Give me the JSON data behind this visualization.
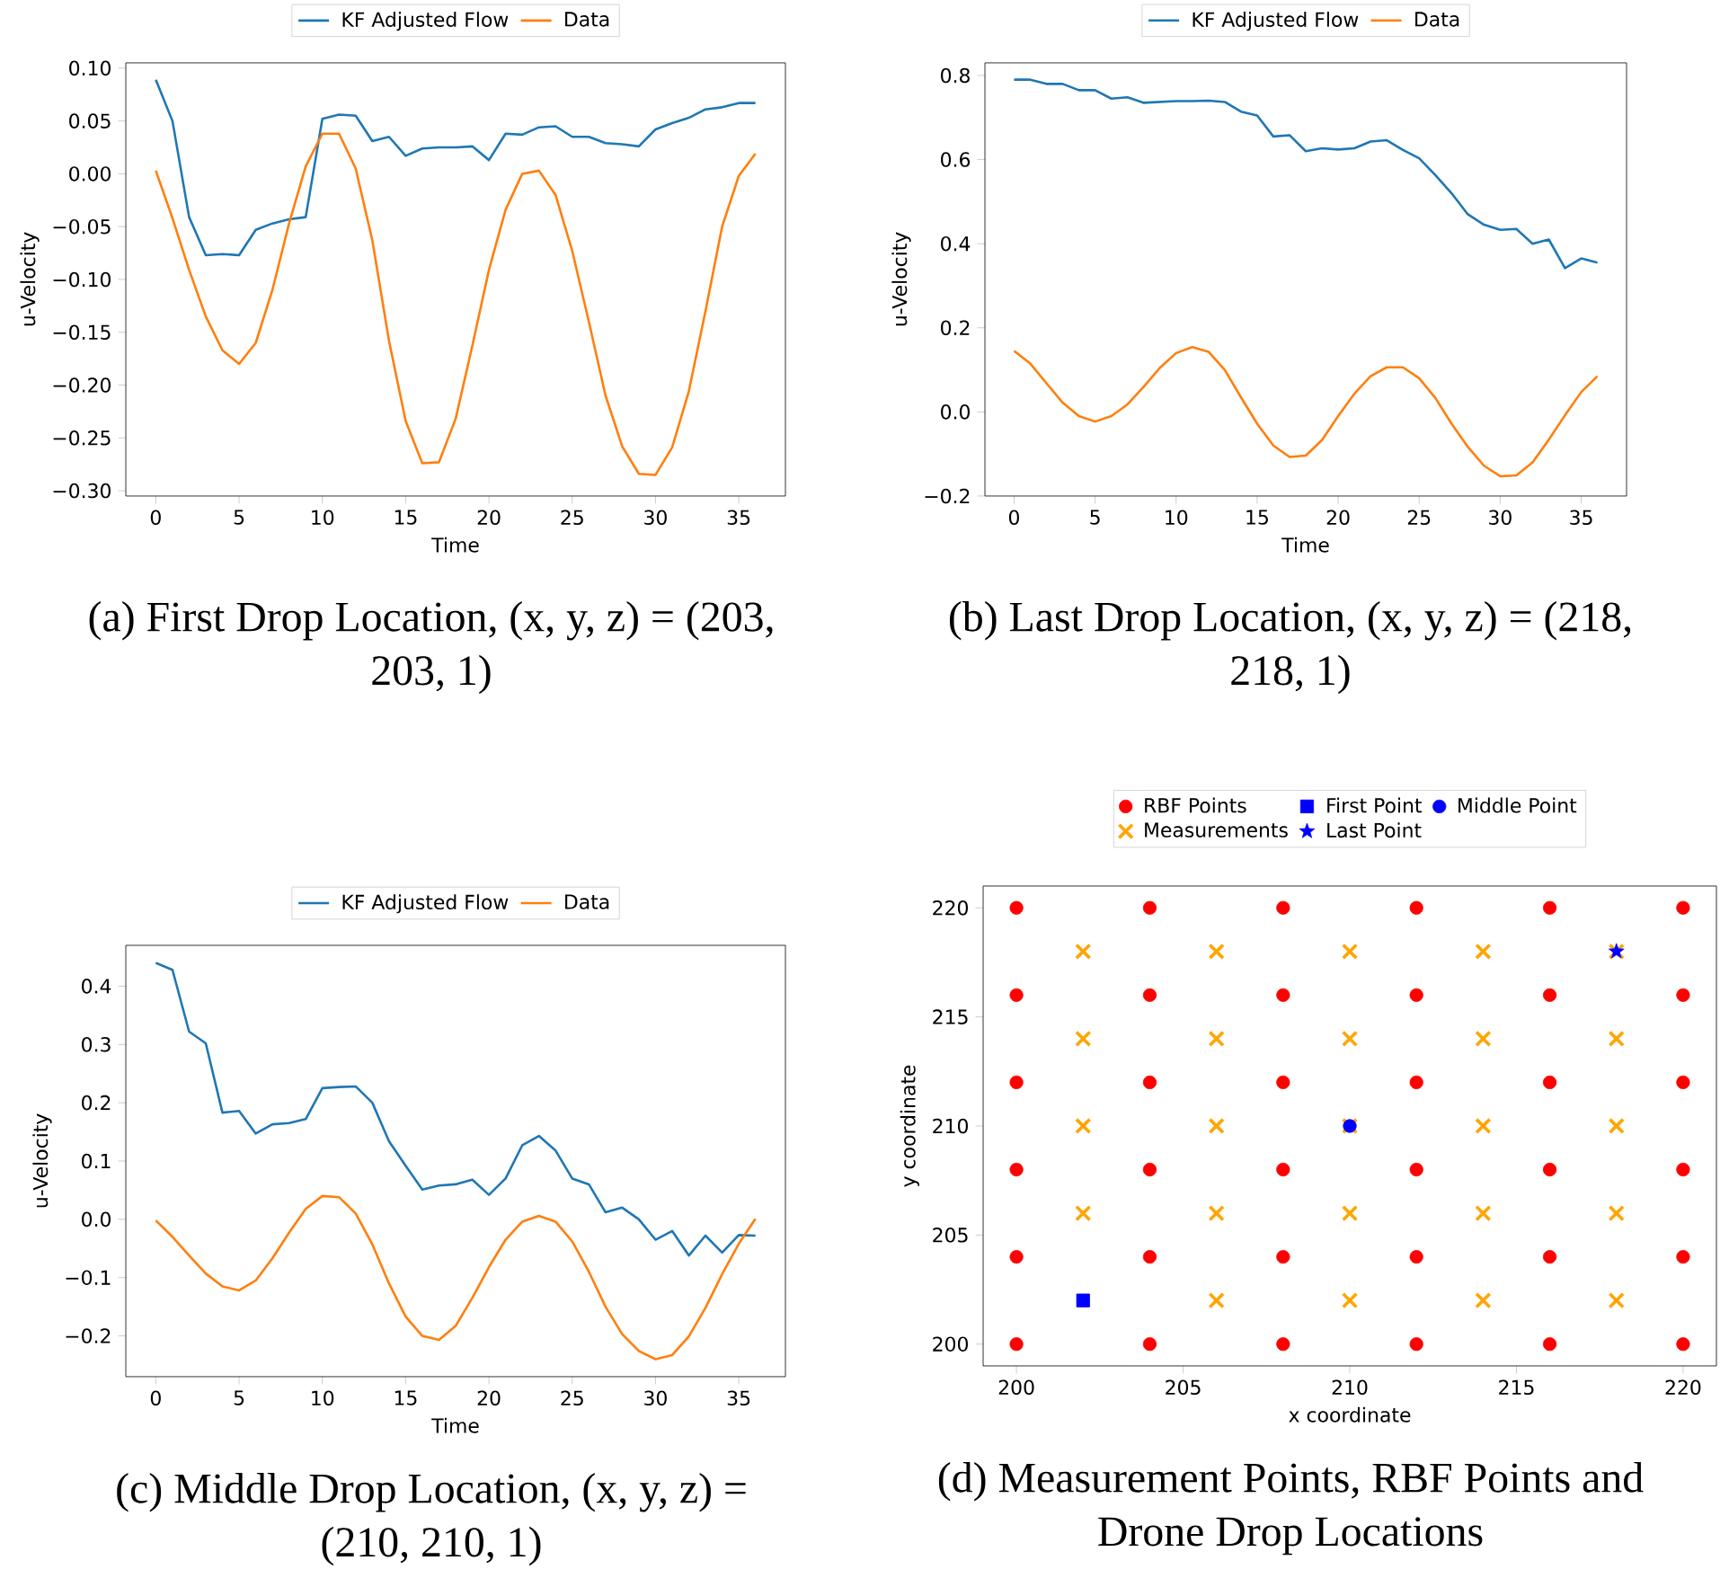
{
  "chart_data": [
    {
      "type": "line",
      "title": "(a) First Drop Location, (x, y, z) = (203, 203, 1)",
      "xlabel": "Time",
      "ylabel": "u-Velocity",
      "legend": "top",
      "x": [
        0,
        1,
        2,
        3,
        4,
        5,
        6,
        7,
        8,
        9,
        10,
        11,
        12,
        13,
        14,
        15,
        16,
        17,
        18,
        19,
        20,
        21,
        22,
        23,
        24,
        25,
        26,
        27,
        28,
        29,
        30,
        31,
        32,
        33,
        34,
        35,
        36
      ],
      "xlim": [
        -1.8,
        37.8
      ],
      "xticks": [
        0,
        5,
        10,
        15,
        20,
        25,
        30,
        35
      ],
      "ylim": [
        -0.305,
        0.105
      ],
      "yticks": [
        {
          "value": -0.3,
          "label": "−0.30"
        },
        {
          "value": -0.25,
          "label": "−0.25"
        },
        {
          "value": -0.2,
          "label": "−0.20"
        },
        {
          "value": -0.15,
          "label": "−0.15"
        },
        {
          "value": -0.1,
          "label": "−0.10"
        },
        {
          "value": -0.05,
          "label": "−0.05"
        },
        {
          "value": 0,
          "label": "0.00"
        },
        {
          "value": 0.05,
          "label": "0.05"
        },
        {
          "value": 0.1,
          "label": "0.10"
        }
      ],
      "series": [
        {
          "name": "KF Adjusted Flow",
          "color": "#1f77b4",
          "values": [
            0.089,
            0.05,
            -0.041,
            -0.077,
            -0.076,
            -0.077,
            -0.053,
            -0.047,
            -0.043,
            -0.041,
            0.052,
            0.056,
            0.055,
            0.031,
            0.035,
            0.017,
            0.024,
            0.025,
            0.025,
            0.026,
            0.013,
            0.038,
            0.037,
            0.044,
            0.045,
            0.035,
            0.035,
            0.029,
            0.028,
            0.026,
            0.042,
            0.048,
            0.053,
            0.061,
            0.063,
            0.067,
            0.067
          ]
        },
        {
          "name": "Data",
          "color": "#ff7f0e",
          "values": [
            0.003,
            -0.042,
            -0.091,
            -0.135,
            -0.167,
            -0.18,
            -0.16,
            -0.11,
            -0.047,
            0.007,
            0.038,
            0.038,
            0.005,
            -0.063,
            -0.158,
            -0.234,
            -0.274,
            -0.273,
            -0.232,
            -0.163,
            -0.091,
            -0.034,
            0.0,
            0.003,
            -0.02,
            -0.073,
            -0.14,
            -0.21,
            -0.258,
            -0.284,
            -0.285,
            -0.259,
            -0.206,
            -0.13,
            -0.05,
            -0.002,
            0.019
          ]
        }
      ]
    },
    {
      "type": "line",
      "title": "(b) Last Drop Location, (x, y, z) = (218, 218, 1)",
      "xlabel": "Time",
      "ylabel": "u-Velocity",
      "legend": "top",
      "x": [
        0,
        1,
        2,
        3,
        4,
        5,
        6,
        7,
        8,
        9,
        10,
        11,
        12,
        13,
        14,
        15,
        16,
        17,
        18,
        19,
        20,
        21,
        22,
        23,
        24,
        25,
        26,
        27,
        28,
        29,
        30,
        31,
        32,
        33,
        34,
        35,
        36
      ],
      "xlim": [
        -1.8,
        37.8
      ],
      "xticks": [
        0,
        5,
        10,
        15,
        20,
        25,
        30,
        35
      ],
      "ylim": [
        -0.2,
        0.83
      ],
      "yticks": [
        {
          "value": -0.2,
          "label": "−0.2"
        },
        {
          "value": 0,
          "label": "0.0"
        },
        {
          "value": 0.2,
          "label": "0.2"
        },
        {
          "value": 0.4,
          "label": "0.4"
        },
        {
          "value": 0.6,
          "label": "0.6"
        },
        {
          "value": 0.8,
          "label": "0.8"
        }
      ],
      "series": [
        {
          "name": "KF Adjusted Flow",
          "color": "#1f77b4",
          "values": [
            0.79,
            0.79,
            0.78,
            0.78,
            0.765,
            0.765,
            0.745,
            0.748,
            0.735,
            0.737,
            0.739,
            0.739,
            0.74,
            0.737,
            0.714,
            0.705,
            0.655,
            0.658,
            0.62,
            0.627,
            0.624,
            0.627,
            0.643,
            0.646,
            0.623,
            0.603,
            0.563,
            0.52,
            0.47,
            0.445,
            0.433,
            0.435,
            0.4,
            0.41,
            0.342,
            0.365,
            0.355
          ]
        },
        {
          "name": "Data",
          "color": "#ff7f0e",
          "values": [
            0.145,
            0.115,
            0.068,
            0.022,
            -0.01,
            -0.023,
            -0.01,
            0.018,
            0.06,
            0.105,
            0.14,
            0.154,
            0.143,
            0.1,
            0.035,
            -0.028,
            -0.08,
            -0.107,
            -0.104,
            -0.067,
            -0.01,
            0.043,
            0.085,
            0.106,
            0.106,
            0.08,
            0.033,
            -0.028,
            -0.083,
            -0.128,
            -0.153,
            -0.151,
            -0.12,
            -0.066,
            -0.008,
            0.047,
            0.085
          ]
        }
      ]
    },
    {
      "type": "line",
      "title": "(c) Middle Drop Location, (x, y, z) = (210, 210, 1)",
      "xlabel": "Time",
      "ylabel": "u-Velocity",
      "legend": "top",
      "x": [
        0,
        1,
        2,
        3,
        4,
        5,
        6,
        7,
        8,
        9,
        10,
        11,
        12,
        13,
        14,
        15,
        16,
        17,
        18,
        19,
        20,
        21,
        22,
        23,
        24,
        25,
        26,
        27,
        28,
        29,
        30,
        31,
        32,
        33,
        34,
        35,
        36
      ],
      "xlim": [
        -1.8,
        37.8
      ],
      "xticks": [
        0,
        5,
        10,
        15,
        20,
        25,
        30,
        35
      ],
      "ylim": [
        -0.27,
        0.47
      ],
      "yticks": [
        {
          "value": -0.2,
          "label": "−0.2"
        },
        {
          "value": -0.1,
          "label": "−0.1"
        },
        {
          "value": 0,
          "label": "0.0"
        },
        {
          "value": 0.1,
          "label": "0.1"
        },
        {
          "value": 0.2,
          "label": "0.2"
        },
        {
          "value": 0.3,
          "label": "0.3"
        },
        {
          "value": 0.4,
          "label": "0.4"
        }
      ],
      "series": [
        {
          "name": "KF Adjusted Flow",
          "color": "#1f77b4",
          "values": [
            0.44,
            0.428,
            0.322,
            0.302,
            0.183,
            0.186,
            0.147,
            0.163,
            0.165,
            0.172,
            0.225,
            0.227,
            0.228,
            0.2,
            0.134,
            0.092,
            0.051,
            0.058,
            0.06,
            0.068,
            0.042,
            0.07,
            0.127,
            0.143,
            0.118,
            0.07,
            0.06,
            0.012,
            0.02,
            0.0,
            -0.035,
            -0.02,
            -0.062,
            -0.028,
            -0.057,
            -0.027,
            -0.028
          ]
        },
        {
          "name": "Data",
          "color": "#ff7f0e",
          "values": [
            -0.002,
            -0.03,
            -0.062,
            -0.093,
            -0.115,
            -0.122,
            -0.105,
            -0.067,
            -0.023,
            0.018,
            0.04,
            0.038,
            0.01,
            -0.043,
            -0.11,
            -0.167,
            -0.2,
            -0.207,
            -0.183,
            -0.135,
            -0.082,
            -0.035,
            -0.004,
            0.006,
            -0.004,
            -0.038,
            -0.09,
            -0.15,
            -0.197,
            -0.226,
            -0.24,
            -0.233,
            -0.201,
            -0.152,
            -0.094,
            -0.042,
            0.001
          ]
        }
      ]
    },
    {
      "type": "scatter",
      "title": "(d) Measurement Points, RBF Points and Drone Drop Locations",
      "xlabel": "x coordinate",
      "ylabel": "y coordinate",
      "legend": "top",
      "xlim": [
        199,
        221
      ],
      "xticks": [
        200,
        205,
        210,
        215,
        220
      ],
      "ylim": [
        199,
        221
      ],
      "yticks": [
        200,
        205,
        210,
        215,
        220
      ],
      "series": [
        {
          "name": "RBF Points",
          "color": "#ff0000",
          "marker": "circle",
          "x": [
            200,
            204,
            208,
            212,
            216,
            220,
            200,
            204,
            208,
            212,
            216,
            220,
            200,
            204,
            208,
            212,
            216,
            220,
            200,
            204,
            208,
            212,
            216,
            220,
            200,
            204,
            208,
            212,
            216,
            220,
            200,
            204,
            208,
            212,
            216,
            220
          ],
          "values": [
            200,
            200,
            200,
            200,
            200,
            200,
            204,
            204,
            204,
            204,
            204,
            204,
            208,
            208,
            208,
            208,
            208,
            208,
            212,
            212,
            212,
            212,
            212,
            212,
            216,
            216,
            216,
            216,
            216,
            216,
            220,
            220,
            220,
            220,
            220,
            220
          ]
        },
        {
          "name": "Measurements",
          "color": "#ffa500",
          "marker": "cross",
          "x": [
            206,
            210,
            214,
            218,
            202,
            206,
            210,
            214,
            218,
            202,
            206,
            210,
            214,
            218,
            202,
            206,
            210,
            214,
            218,
            202,
            206,
            210,
            214,
            218
          ],
          "values": [
            202,
            202,
            202,
            202,
            206,
            206,
            206,
            206,
            206,
            210,
            210,
            210,
            210,
            210,
            214,
            214,
            214,
            214,
            214,
            218,
            218,
            218,
            218,
            218
          ]
        },
        {
          "name": "First Point",
          "color": "#0000ff",
          "marker": "square",
          "x": [
            202
          ],
          "values": [
            202
          ]
        },
        {
          "name": "Last Point",
          "color": "#0000ff",
          "marker": "star",
          "x": [
            218
          ],
          "values": [
            218
          ]
        },
        {
          "name": "Middle Point",
          "color": "#0000ff",
          "marker": "circle",
          "x": [
            210
          ],
          "values": [
            210
          ]
        }
      ]
    }
  ]
}
